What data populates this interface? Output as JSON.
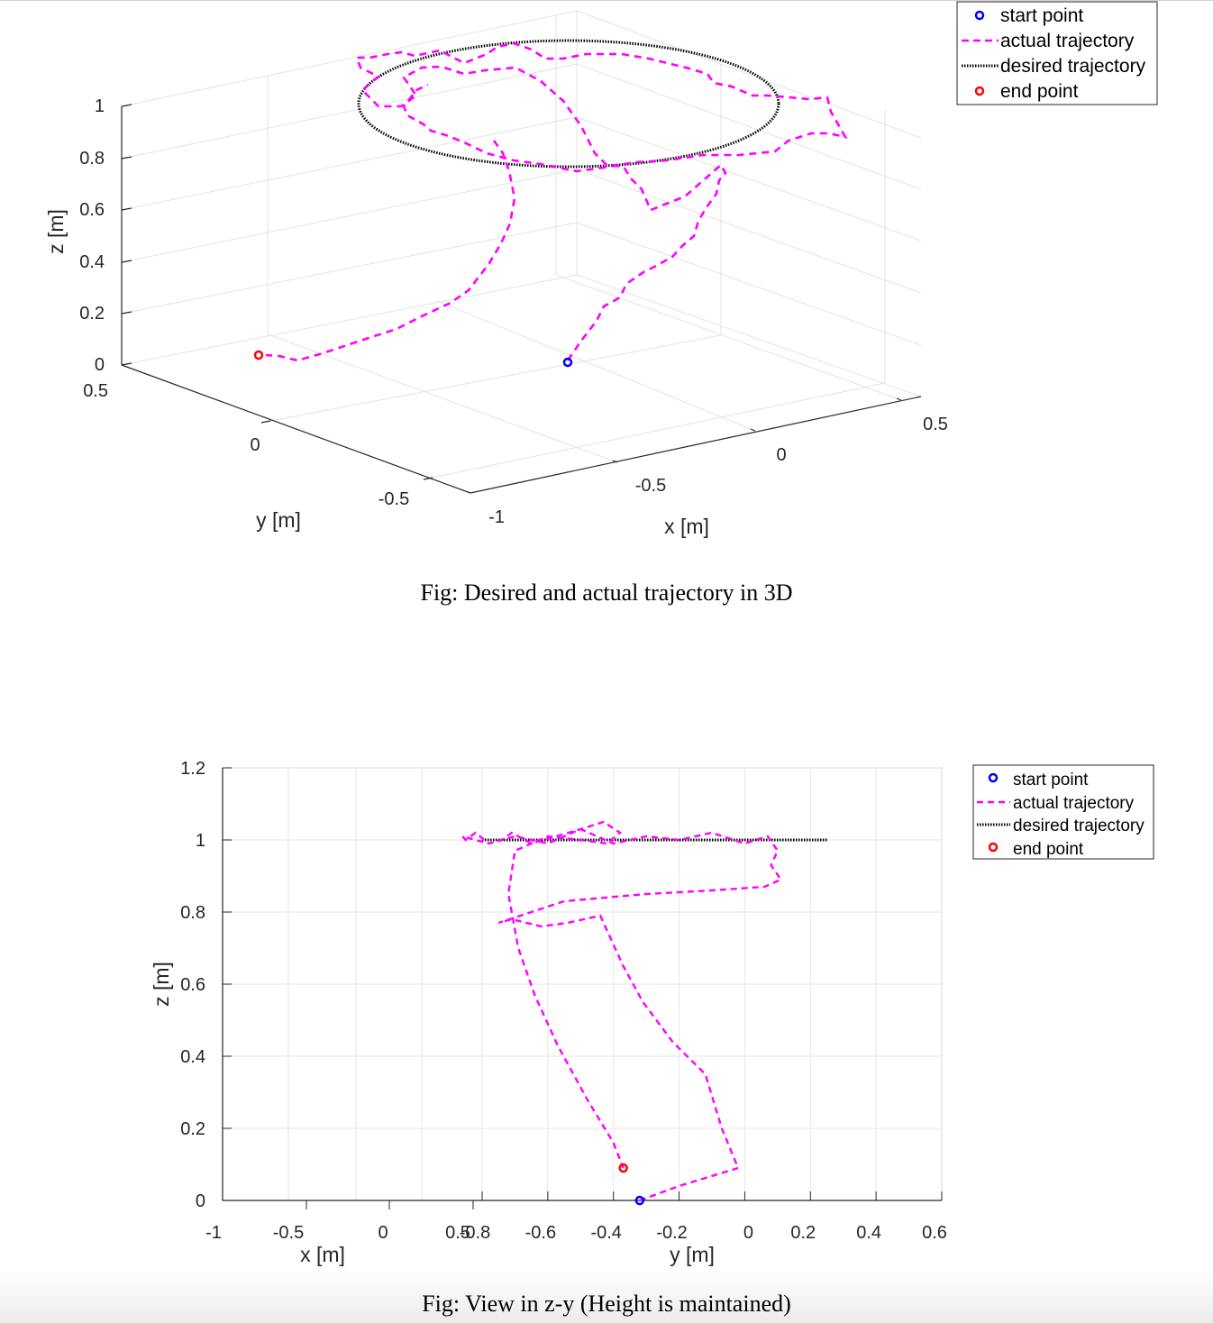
{
  "chart_data": [
    {
      "type": "line-3d",
      "xlabel": "x [m]",
      "ylabel": "y [m]",
      "zlabel": "z [m]",
      "xticks": [
        "-1",
        "-0.5",
        "0",
        "0.5"
      ],
      "yticks": [
        "0.5",
        "0",
        "-0.5"
      ],
      "zticks": [
        "0",
        "0.2",
        "0.4",
        "0.6",
        "0.8",
        "1"
      ],
      "grid": true,
      "legend_position": "top-right",
      "legend": [
        {
          "label": "start point",
          "style": "marker",
          "color": "#0000ff"
        },
        {
          "label": "actual trajectory",
          "style": "dashed",
          "color": "#ff00ff"
        },
        {
          "label": "desired trajectory",
          "style": "dotted",
          "color": "#000000"
        },
        {
          "label": "end point",
          "style": "marker",
          "color": "#ff0000"
        }
      ],
      "series": [
        {
          "name": "desired trajectory",
          "note_shape": "circle",
          "center": [
            0,
            0,
            1
          ],
          "radius": 0.5
        },
        {
          "name": "start point",
          "x": [
            -0.3
          ],
          "y": [
            0
          ],
          "z": [
            0
          ]
        },
        {
          "name": "end point",
          "x": [
            -0.82
          ],
          "y": [
            0.44
          ],
          "z": [
            0.08
          ]
        }
      ]
    },
    {
      "type": "line",
      "xlabel": "x [m]",
      "ylabel": "y [m]",
      "zlabel": "z [m]",
      "xticks": [
        "-1",
        "-0.5",
        "0",
        "0.5"
      ],
      "yticks": [
        "-0.8",
        "-0.6",
        "-0.4",
        "-0.2",
        "0",
        "0.2",
        "0.4",
        "0.6"
      ],
      "zticks": [
        "0",
        "0.2",
        "0.4",
        "0.6",
        "0.8",
        "1",
        "1.2"
      ],
      "ylim": [
        -0.8,
        0.6
      ],
      "zlim": [
        0,
        1.2
      ],
      "grid": true,
      "legend_position": "top-right",
      "legend": [
        {
          "label": "start point",
          "style": "marker",
          "color": "#0000ff"
        },
        {
          "label": "actual trajectory",
          "style": "dashed",
          "color": "#ff00ff"
        },
        {
          "label": "desired trajectory",
          "style": "dotted",
          "color": "#000000"
        },
        {
          "label": "end point",
          "style": "marker",
          "color": "#ff0000"
        }
      ],
      "series": [
        {
          "name": "desired trajectory",
          "y": [
            -0.8,
            0.25
          ],
          "z": [
            1,
            1
          ]
        },
        {
          "name": "actual trajectory",
          "y": [
            -0.32,
            -0.2,
            -0.02,
            -0.07,
            -0.12,
            -0.22,
            -0.31,
            -0.37,
            -0.44,
            -0.54,
            -0.62,
            -0.71,
            -0.75,
            -0.55,
            -0.3,
            -0.1,
            0.06,
            0.11,
            0.08,
            0.1,
            0.07,
            0.0,
            -0.1,
            -0.2,
            -0.3,
            -0.4,
            -0.5,
            -0.6,
            -0.7,
            -0.78,
            -0.82,
            -0.85,
            -0.86,
            -0.78,
            -0.74,
            -0.71,
            -0.65,
            -0.5,
            -0.43,
            -0.38,
            -0.42,
            -0.5,
            -0.6,
            -0.7,
            -0.72,
            -0.69,
            -0.64,
            -0.57,
            -0.48,
            -0.4,
            -0.37
          ],
          "z": [
            0,
            0.04,
            0.09,
            0.2,
            0.35,
            0.44,
            0.55,
            0.65,
            0.79,
            0.77,
            0.76,
            0.78,
            0.77,
            0.83,
            0.85,
            0.86,
            0.87,
            0.89,
            0.93,
            0.97,
            1.01,
            0.99,
            1.02,
            1.0,
            1.01,
            0.99,
            1.03,
            0.99,
            1.01,
            0.99,
            1.02,
            1.0,
            1.01,
            0.99,
            1.0,
            1.02,
            0.99,
            1.03,
            1.05,
            1.02,
            0.99,
            1.0,
            1.01,
            0.97,
            0.85,
            0.7,
            0.57,
            0.43,
            0.28,
            0.16,
            0.09
          ]
        },
        {
          "name": "start point",
          "y": [
            -0.32
          ],
          "z": [
            0
          ]
        },
        {
          "name": "end point",
          "y": [
            -0.37
          ],
          "z": [
            0.09
          ]
        }
      ]
    }
  ],
  "captions": {
    "fig1": "Fig: Desired and actual trajectory in 3D",
    "fig2": "Fig: View in z-y (Height is maintained)"
  },
  "colors": {
    "actual": "#ff00ff",
    "desired": "#000000",
    "start": "#0000ff",
    "end": "#ff0000"
  }
}
